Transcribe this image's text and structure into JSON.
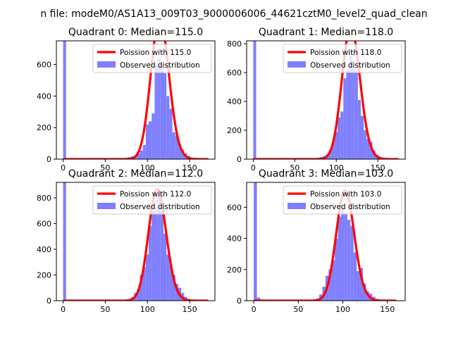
{
  "figure": {
    "suptitle": "n file: modeM0/AS1A13_009T03_9000006006_44621cztM0_level2_quad_clean",
    "colors": {
      "hist": "#7f7fff",
      "poisson": "#ff0000"
    }
  },
  "chart_data": [
    {
      "type": "bar",
      "title": "Quadrant 0: Median=115.0",
      "xlim": [
        -8,
        180
      ],
      "ylim": [
        0,
        750
      ],
      "xticks": [
        0,
        50,
        100,
        150
      ],
      "yticks": [
        0,
        200,
        400,
        600
      ],
      "legend": {
        "placement": "top-right",
        "entries": [
          "Poission with 115.0",
          "Observed distribution"
        ]
      },
      "series": [
        {
          "name": "Observed distribution",
          "kind": "histogram",
          "bin_width": 3.5,
          "bins": [
            [
              0,
              750
            ],
            [
              3.5,
              5
            ],
            [
              70,
              6
            ],
            [
              73.5,
              9
            ],
            [
              77,
              12
            ],
            [
              80.5,
              18
            ],
            [
              84,
              22
            ],
            [
              87.5,
              35
            ],
            [
              91,
              55
            ],
            [
              94.5,
              90
            ],
            [
              98,
              220
            ],
            [
              101.5,
              240
            ],
            [
              105,
              290
            ],
            [
              108.5,
              600
            ],
            [
              112,
              640
            ],
            [
              115.5,
              590
            ],
            [
              119,
              545
            ],
            [
              122.5,
              400
            ],
            [
              126,
              320
            ],
            [
              129.5,
              170
            ],
            [
              133,
              150
            ],
            [
              136.5,
              95
            ],
            [
              140,
              60
            ],
            [
              143.5,
              35
            ],
            [
              147,
              20
            ],
            [
              150.5,
              10
            ],
            [
              154,
              5
            ],
            [
              157.5,
              3
            ]
          ]
        },
        {
          "name": "Poission with 115.0",
          "kind": "line",
          "mean": 115.0,
          "scale": 24000,
          "x_range": [
            0,
            172
          ]
        }
      ]
    },
    {
      "type": "bar",
      "title": "Quadrant 1: Median=118.0",
      "xlim": [
        -8,
        183
      ],
      "ylim": [
        0,
        820
      ],
      "xticks": [
        0,
        50,
        100,
        150
      ],
      "yticks": [
        0,
        200,
        400,
        600,
        800
      ],
      "legend": {
        "placement": "top-right",
        "entries": [
          "Poission with 118.0",
          "Observed distribution"
        ]
      },
      "series": [
        {
          "name": "Observed distribution",
          "kind": "histogram",
          "bin_width": 3.5,
          "bins": [
            [
              0,
              820
            ],
            [
              3.5,
              5
            ],
            [
              73.5,
              6
            ],
            [
              77,
              10
            ],
            [
              80.5,
              15
            ],
            [
              84,
              22
            ],
            [
              87.5,
              35
            ],
            [
              91,
              60
            ],
            [
              94.5,
              120
            ],
            [
              98,
              190
            ],
            [
              101.5,
              290
            ],
            [
              105,
              330
            ],
            [
              108.5,
              560
            ],
            [
              112,
              620
            ],
            [
              115.5,
              720
            ],
            [
              119,
              640
            ],
            [
              122.5,
              600
            ],
            [
              126,
              410
            ],
            [
              129.5,
              300
            ],
            [
              133,
              200
            ],
            [
              136.5,
              140
            ],
            [
              140,
              120
            ],
            [
              143.5,
              60
            ],
            [
              147,
              30
            ],
            [
              150.5,
              18
            ],
            [
              154,
              10
            ],
            [
              157.5,
              5
            ]
          ]
        },
        {
          "name": "Poission with 118.0",
          "kind": "line",
          "mean": 118.0,
          "scale": 25000,
          "x_range": [
            0,
            175
          ]
        }
      ]
    },
    {
      "type": "bar",
      "title": "Quadrant 2: Median=112.0",
      "xlim": [
        -8,
        180
      ],
      "ylim": [
        0,
        920
      ],
      "xticks": [
        0,
        50,
        100,
        150
      ],
      "yticks": [
        0,
        200,
        400,
        600,
        800
      ],
      "legend": {
        "placement": "top-right",
        "entries": [
          "Poission with 112.0",
          "Observed distribution"
        ]
      },
      "series": [
        {
          "name": "Observed distribution",
          "kind": "histogram",
          "bin_width": 3.5,
          "bins": [
            [
              0,
              920
            ],
            [
              3.5,
              5
            ],
            [
              70,
              6
            ],
            [
              73.5,
              10
            ],
            [
              77,
              15
            ],
            [
              80.5,
              28
            ],
            [
              84,
              60
            ],
            [
              87.5,
              90
            ],
            [
              91,
              200
            ],
            [
              94.5,
              260
            ],
            [
              98,
              360
            ],
            [
              101.5,
              580
            ],
            [
              105,
              700
            ],
            [
              108.5,
              720
            ],
            [
              112,
              830
            ],
            [
              115.5,
              700
            ],
            [
              119,
              520
            ],
            [
              122.5,
              360
            ],
            [
              126,
              280
            ],
            [
              129.5,
              200
            ],
            [
              133,
              130
            ],
            [
              136.5,
              100
            ],
            [
              140,
              60
            ],
            [
              143.5,
              30
            ],
            [
              147,
              15
            ],
            [
              150.5,
              8
            ]
          ]
        },
        {
          "name": "Poission with 112.0",
          "kind": "line",
          "mean": 112.0,
          "scale": 23000,
          "x_range": [
            0,
            172
          ]
        }
      ]
    },
    {
      "type": "bar",
      "title": "Quadrant 3: Median=103.0",
      "xlim": [
        -8,
        170
      ],
      "ylim": [
        0,
        760
      ],
      "xticks": [
        0,
        50,
        100,
        150
      ],
      "yticks": [
        0,
        200,
        400,
        600
      ],
      "legend": {
        "placement": "top-right",
        "entries": [
          "Poission with 103.0",
          "Observed distribution"
        ]
      },
      "series": [
        {
          "name": "Observed distribution",
          "kind": "histogram",
          "bin_width": 3.5,
          "bins": [
            [
              0,
              760
            ],
            [
              3.5,
              20
            ],
            [
              7,
              8
            ],
            [
              63,
              5
            ],
            [
              66.5,
              8
            ],
            [
              70,
              15
            ],
            [
              73.5,
              40
            ],
            [
              77,
              90
            ],
            [
              80.5,
              160
            ],
            [
              84,
              200
            ],
            [
              87.5,
              260
            ],
            [
              91,
              400
            ],
            [
              94.5,
              540
            ],
            [
              98,
              600
            ],
            [
              101.5,
              560
            ],
            [
              105,
              520
            ],
            [
              108.5,
              480
            ],
            [
              112,
              310
            ],
            [
              115.5,
              190
            ],
            [
              119,
              210
            ],
            [
              122.5,
              110
            ],
            [
              126,
              60
            ],
            [
              129.5,
              45
            ],
            [
              133,
              25
            ],
            [
              136.5,
              12
            ],
            [
              140,
              6
            ]
          ]
        },
        {
          "name": "Poission with 103.0",
          "kind": "line",
          "mean": 103.0,
          "scale": 18000,
          "x_range": [
            0,
            160
          ]
        }
      ]
    }
  ]
}
